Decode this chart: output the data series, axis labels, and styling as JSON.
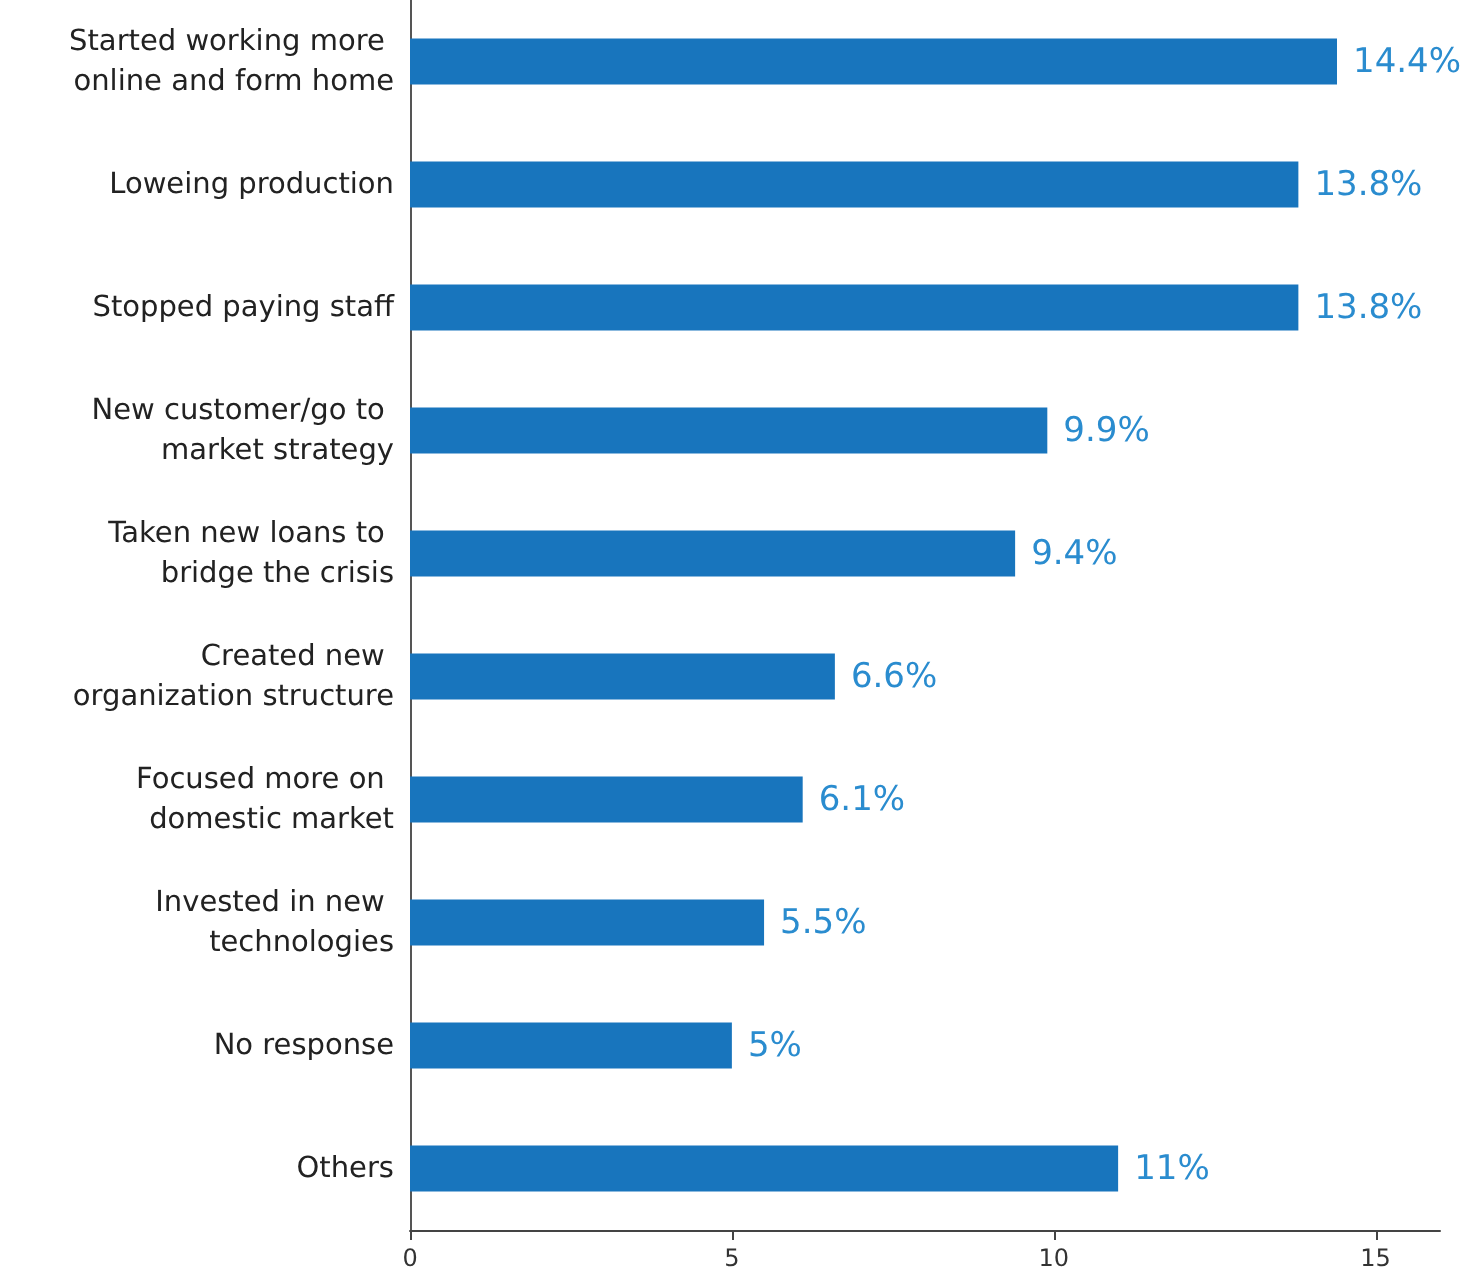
{
  "chart_data": {
    "type": "bar",
    "orientation": "horizontal",
    "categories": [
      "Started working more online and form home",
      "Loweing production",
      "Stopped paying staff",
      "New customer/go to market strategy",
      "Taken new loans to bridge the crisis",
      "Created new organization structure",
      "Focused more on domestic market",
      "Invested in new technologies",
      "No response",
      "Others"
    ],
    "values": [
      14.4,
      13.8,
      13.8,
      9.9,
      9.4,
      6.6,
      6.1,
      5.5,
      5,
      11
    ],
    "value_labels": [
      "14.4%",
      "13.8%",
      "13.8%",
      "9.9%",
      "9.4%",
      "6.6%",
      "6.1%",
      "5.5%",
      "5%",
      "11%"
    ],
    "color": "#1875bd",
    "xlim": [
      0,
      16
    ],
    "xticks": [
      0,
      5,
      10,
      15
    ]
  }
}
